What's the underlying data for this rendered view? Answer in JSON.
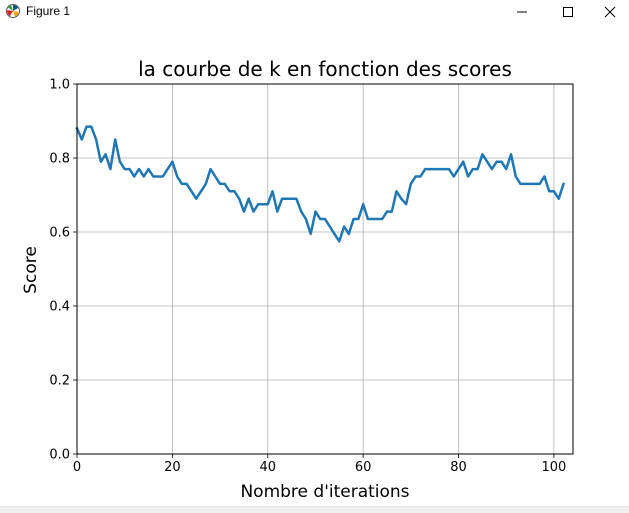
{
  "window": {
    "title": "Figure 1",
    "icon": "matplotlib-icon",
    "buttons": [
      "minimize-icon",
      "maximize-icon",
      "close-icon"
    ]
  },
  "colors": {
    "line": "#1f77b4",
    "grid": "#b0b0b0",
    "axes": "#000000",
    "background": "#ffffff"
  },
  "chart_data": {
    "type": "line",
    "title": "la courbe de k en fonction des scores",
    "xlabel": "Nombre d'iterations",
    "ylabel": "Score",
    "xlim": [
      0,
      104
    ],
    "ylim": [
      0.0,
      1.0
    ],
    "xticks": [
      0,
      20,
      40,
      60,
      80,
      100
    ],
    "yticks": [
      0.0,
      0.2,
      0.4,
      0.6,
      0.8,
      1.0
    ],
    "ytick_labels": [
      "0.0",
      "0.2",
      "0.4",
      "0.6",
      "0.8",
      "1.0"
    ],
    "grid": true,
    "legend": false,
    "series": [
      {
        "x": [
          0,
          1,
          2,
          3,
          4,
          5,
          6,
          7,
          8,
          9,
          10,
          11,
          12,
          13,
          14,
          15,
          16,
          17,
          18,
          19,
          20,
          21,
          22,
          23,
          24,
          25,
          26,
          27,
          28,
          29,
          30,
          31,
          32,
          33,
          34,
          35,
          36,
          37,
          38,
          39,
          40,
          41,
          42,
          43,
          44,
          45,
          46,
          47,
          48,
          49,
          50,
          51,
          52,
          53,
          54,
          55,
          56,
          57,
          58,
          59,
          60,
          61,
          62,
          63,
          64,
          65,
          66,
          67,
          68,
          69,
          70,
          71,
          72,
          73,
          74,
          75,
          76,
          77,
          78,
          79,
          80,
          81,
          82,
          83,
          84,
          85,
          86,
          87,
          88,
          89,
          90,
          91,
          92,
          93,
          94,
          95,
          96,
          97,
          98,
          99,
          100,
          101,
          102
        ],
        "y": [
          0.88,
          0.85,
          0.885,
          0.885,
          0.85,
          0.79,
          0.81,
          0.77,
          0.85,
          0.79,
          0.77,
          0.77,
          0.75,
          0.77,
          0.75,
          0.77,
          0.75,
          0.75,
          0.75,
          0.77,
          0.79,
          0.75,
          0.73,
          0.73,
          0.71,
          0.69,
          0.71,
          0.73,
          0.77,
          0.75,
          0.73,
          0.73,
          0.71,
          0.71,
          0.69,
          0.655,
          0.69,
          0.655,
          0.675,
          0.675,
          0.675,
          0.71,
          0.655,
          0.69,
          0.69,
          0.69,
          0.69,
          0.655,
          0.635,
          0.595,
          0.655,
          0.635,
          0.635,
          0.615,
          0.595,
          0.575,
          0.615,
          0.595,
          0.635,
          0.635,
          0.675,
          0.635,
          0.635,
          0.635,
          0.635,
          0.655,
          0.655,
          0.71,
          0.69,
          0.675,
          0.73,
          0.75,
          0.75,
          0.77,
          0.77,
          0.77,
          0.77,
          0.77,
          0.77,
          0.75,
          0.77,
          0.79,
          0.75,
          0.77,
          0.77,
          0.81,
          0.79,
          0.77,
          0.79,
          0.79,
          0.77,
          0.81,
          0.75,
          0.73,
          0.73,
          0.73,
          0.73,
          0.73,
          0.75,
          0.71,
          0.71,
          0.69,
          0.73
        ]
      }
    ]
  }
}
